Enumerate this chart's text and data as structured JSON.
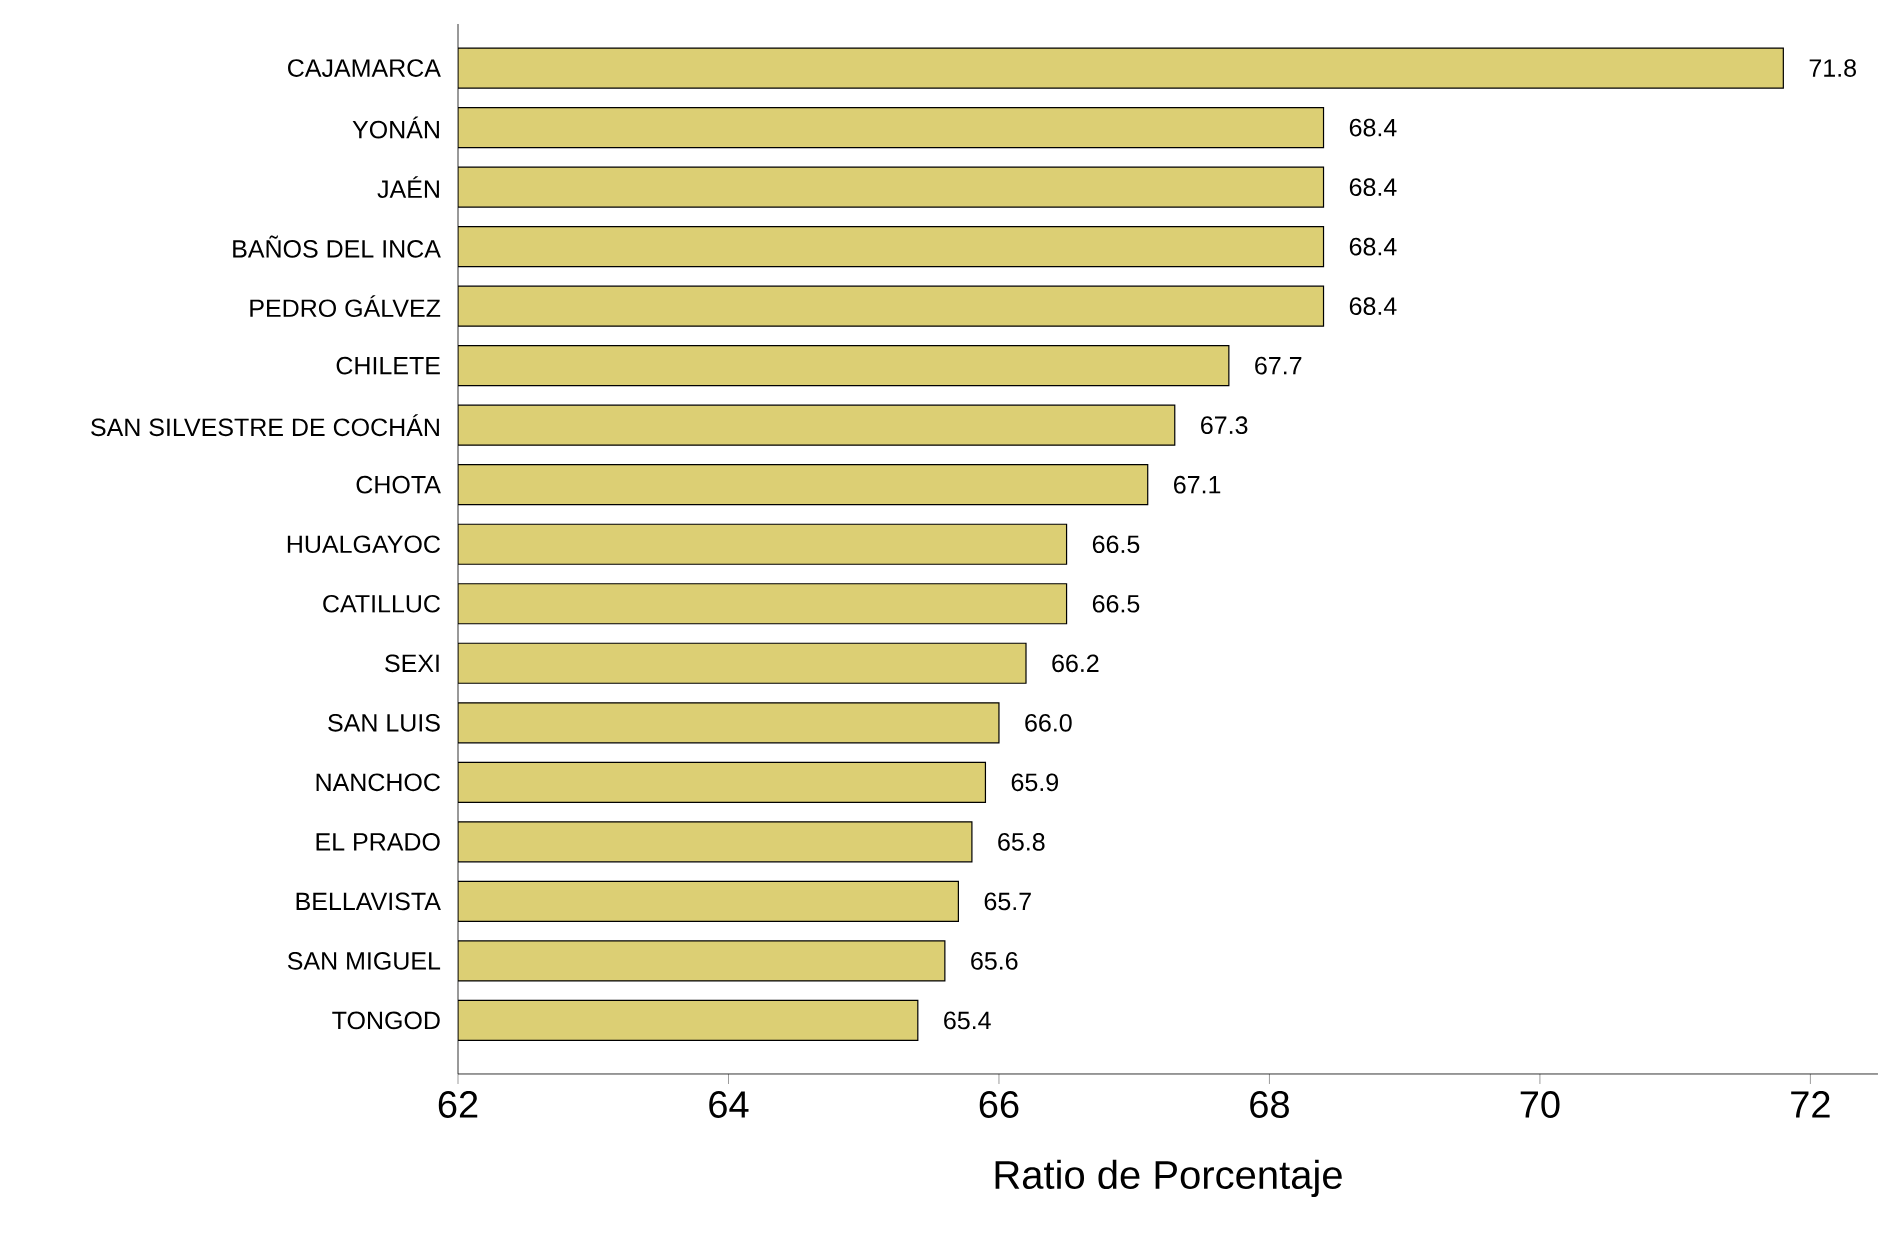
{
  "chart_data": {
    "type": "bar",
    "orientation": "horizontal",
    "xlabel": "Ratio de Porcentaje",
    "categories": [
      "CAJAMARCA",
      "YONÁN",
      "JAÉN",
      "BAÑOS DEL INCA",
      "PEDRO GÁLVEZ",
      "CHILETE",
      "SAN SILVESTRE DE COCHÁN",
      "CHOTA",
      "HUALGAYOC",
      "CATILLUC",
      "SEXI",
      "SAN LUIS",
      "NANCHOC",
      "EL PRADO",
      "BELLAVISTA",
      "SAN MIGUEL",
      "TONGOD"
    ],
    "values": [
      71.8,
      68.4,
      68.4,
      68.4,
      68.4,
      67.7,
      67.3,
      67.1,
      66.5,
      66.5,
      66.2,
      66.0,
      65.9,
      65.8,
      65.7,
      65.6,
      65.4
    ],
    "value_labels": [
      "71.8",
      "68.4",
      "68.4",
      "68.4",
      "68.4",
      "67.7",
      "67.3",
      "67.1",
      "66.5",
      "66.5",
      "66.2",
      "66.0",
      "65.9",
      "65.8",
      "65.7",
      "65.6",
      "65.4"
    ],
    "color": "#dccf74",
    "xlim": [
      62,
      72.5
    ],
    "xticks": [
      62,
      64,
      66,
      68,
      70,
      72
    ]
  }
}
